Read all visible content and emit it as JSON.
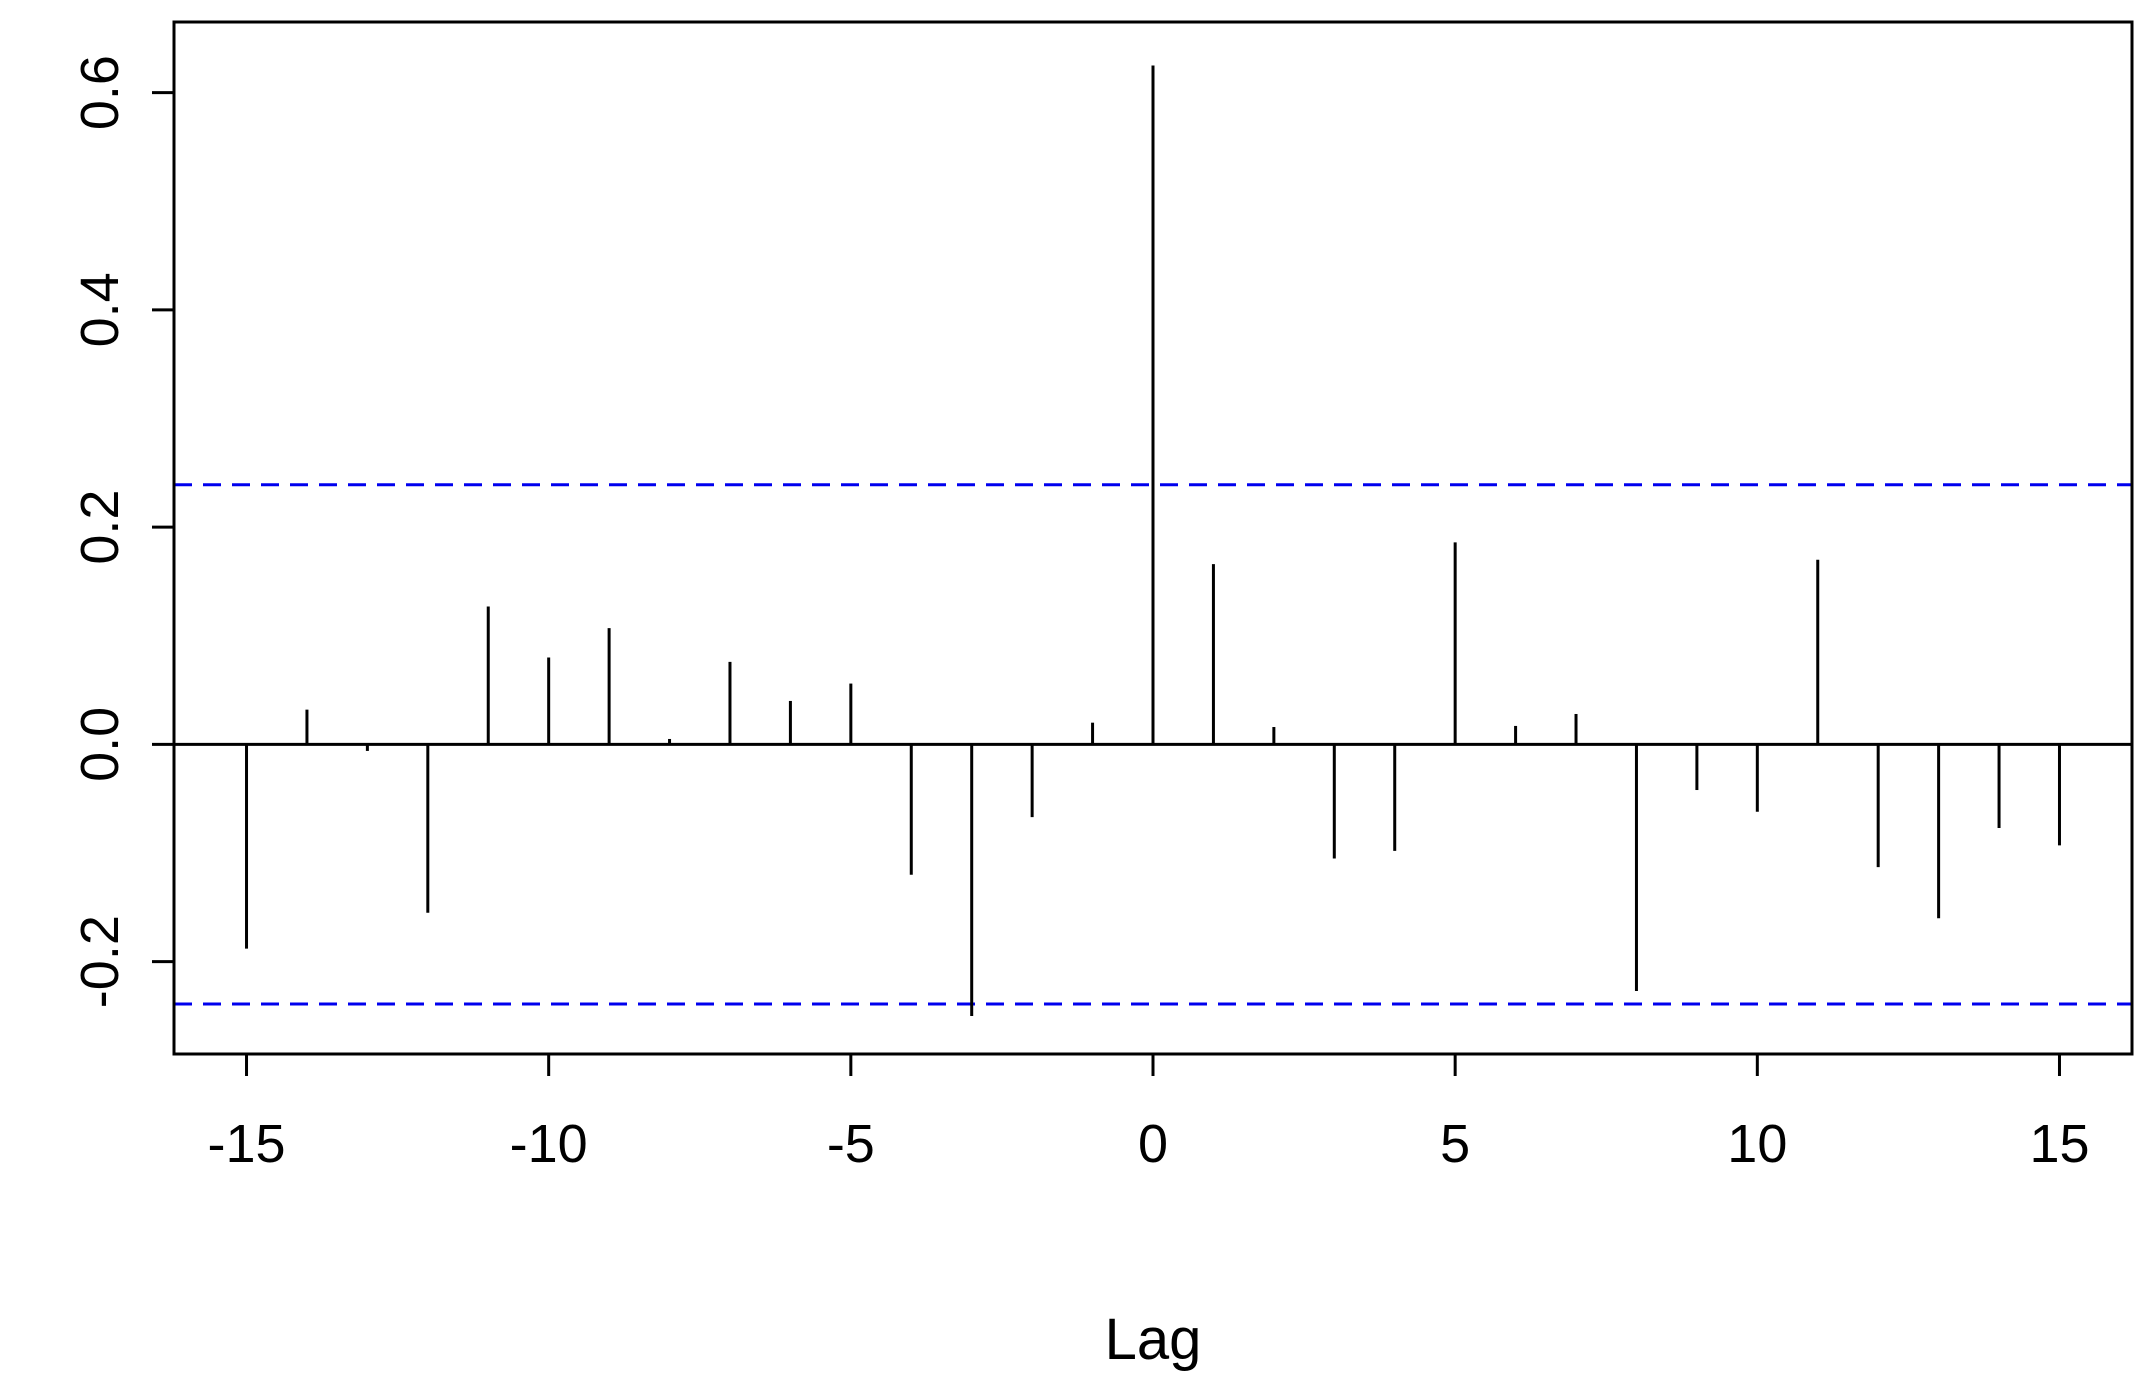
{
  "chart_data": {
    "type": "bar",
    "style": "vertical-lines",
    "title": "",
    "xlabel": "Lag",
    "ylabel": "",
    "xlim": [
      -16.2,
      16.2
    ],
    "ylim": [
      -0.285,
      0.665
    ],
    "xticks": [
      -15,
      -10,
      -5,
      0,
      5,
      10,
      15
    ],
    "xtick_labels": [
      "-15",
      "-10",
      "-5",
      "0",
      "5",
      "10",
      "15"
    ],
    "yticks": [
      -0.2,
      0.0,
      0.2,
      0.4,
      0.6
    ],
    "ytick_labels": [
      "-0.2",
      "0.0",
      "0.2",
      "0.4",
      "0.6"
    ],
    "x": [
      -15,
      -14,
      -13,
      -12,
      -11,
      -10,
      -9,
      -8,
      -7,
      -6,
      -5,
      -4,
      -3,
      -2,
      -1,
      0,
      1,
      2,
      3,
      4,
      5,
      6,
      7,
      8,
      9,
      10,
      11,
      12,
      13,
      14,
      15
    ],
    "values": [
      -0.188,
      0.032,
      -0.006,
      -0.155,
      0.127,
      0.08,
      0.107,
      0.005,
      0.076,
      0.04,
      0.056,
      -0.12,
      -0.25,
      -0.067,
      0.02,
      0.625,
      0.166,
      0.016,
      -0.105,
      -0.098,
      0.186,
      0.017,
      0.028,
      -0.227,
      -0.042,
      -0.062,
      0.17,
      -0.113,
      -0.16,
      -0.077,
      -0.093
    ],
    "confidence_bounds": [
      0.239,
      -0.239
    ],
    "grid": false,
    "legend": "none",
    "colors": {
      "lines": "#000000",
      "confidence": "#0000ee",
      "axes": "#000000",
      "background": "#ffffff"
    }
  }
}
